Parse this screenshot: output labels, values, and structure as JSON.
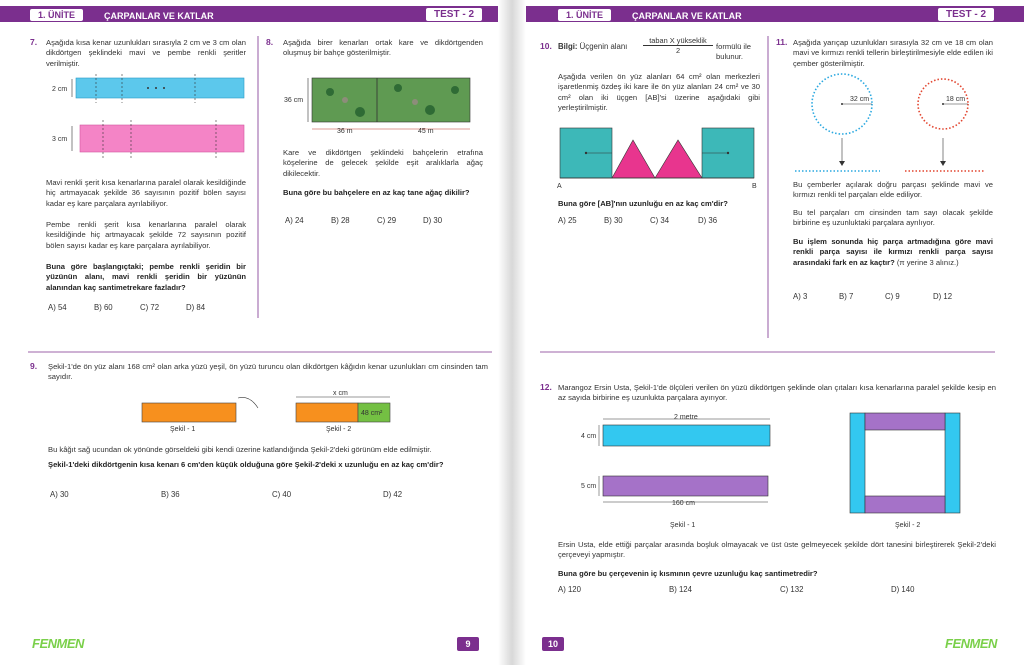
{
  "pages": [
    {
      "header": {
        "unit": "1. ÜNİTE",
        "title": "ÇARPANLAR VE KATLAR",
        "test": "TEST - 2"
      },
      "logo": "FENMEN",
      "page_number": "9",
      "questions": [
        {
          "number": "7.",
          "paragraphs": [
            "Aşağıda kısa kenar uzunlukları sırasıyla 2 cm ve 3 cm olan dikdörtgen şeklindeki mavi ve pembe renkli şeritler verilmiştir.",
            "Mavi renkli şerit kısa kenarlarına paralel olarak kesildiğinde hiç artmayacak şekilde 36 sayısının pozitif bölen sayısı kadar eş kare parçalara ayrılabiliyor.",
            "Pembe renkli şerit kısa kenarlarına paralel olarak kesildiğinde hiç artmayacak şekilde 72 sayısının pozitif bölen sayısı kadar eş kare parçalara ayrılabiliyor."
          ],
          "figure_labels": [
            "2 cm",
            "3 cm"
          ],
          "question": "Buna göre başlangıçtaki; pembe renkli şeridin bir yüzünün alanı, mavi renkli şeridin bir yüzünün alanından kaç santimetrekare fazladır?",
          "options": [
            "A) 54",
            "B) 60",
            "C) 72",
            "D) 84"
          ]
        },
        {
          "number": "8.",
          "paragraphs": [
            "Aşağıda birer kenarları ortak kare ve dikdörtgenden oluşmuş bir bahçe gösterilmiştir.",
            "Kare ve dikdörtgen şeklindeki bahçelerin etrafına köşelerine de gelecek şekilde eşit aralıklarla ağaç dikilecektir."
          ],
          "figure_labels": [
            "36 cm",
            "36 m",
            "45 m"
          ],
          "question": "Buna göre bu bahçelere en az kaç tane ağaç dikilir?",
          "options": [
            "A) 24",
            "B) 28",
            "C) 29",
            "D) 30"
          ]
        },
        {
          "number": "9.",
          "paragraphs": [
            "Şekil-1'de ön yüz alanı 168 cm² olan arka yüzü yeşil, ön yüzü turuncu olan dikdörtgen kâğıdın kenar uzunlukları cm cinsinden tam sayıdır.",
            "Bu kâğıt sağ ucundan ok yönünde görseldeki gibi kendi üzerine katlandığında Şekil-2'deki görünüm elde edilmiştir."
          ],
          "figure_labels": [
            "Şekil - 1",
            "x cm",
            "48 cm²",
            "Şekil - 2"
          ],
          "question": "Şekil-1'deki dikdörtgenin kısa kenarı 6 cm'den küçük olduğuna göre Şekil-2'deki x uzunluğu en az kaç cm'dir?",
          "options": [
            "A) 30",
            "B) 36",
            "C) 40",
            "D) 42"
          ]
        }
      ]
    },
    {
      "header": {
        "unit": "1. ÜNİTE",
        "title": "ÇARPANLAR VE KATLAR",
        "test": "TEST - 2"
      },
      "logo": "FENMEN",
      "page_number": "10",
      "questions": [
        {
          "number": "10.",
          "info": {
            "lead": "Bilgi:",
            "text": "Üçgenin alanı",
            "numerator": "taban X yükseklik",
            "denominator": "2",
            "tail": "formülü ile bulunur."
          },
          "paragraphs": [
            "Aşağıda verilen ön yüz alanları 64 cm² olan merkezleri işaretlenmiş özdeş iki kare ile ön yüz alanları 24 cm² ve 30 cm² olan iki üçgen [AB]'si üzerine aşağıdaki gibi yerleştirilmiştir."
          ],
          "figure_labels": [
            "A",
            "B"
          ],
          "question": "Buna göre [AB]'nın uzunluğu en az kaç cm'dir?",
          "options": [
            "A) 25",
            "B) 30",
            "C) 34",
            "D) 36"
          ]
        },
        {
          "number": "11.",
          "paragraphs": [
            "Aşağıda yarıçap uzunlukları sırasıyla 32 cm ve 18 cm olan mavi ve kırmızı renkli tellerin birleştirilmesiyle elde edilen iki çember gösterilmiştir.",
            "Bu çemberler açılarak doğru parçası şeklinde mavi ve kırmızı renkli tel parçaları elde ediliyor.",
            "Bu tel parçaları cm cinsinden tam sayı olacak şekilde birbirine eş uzunluktaki parçalara ayrılıyor."
          ],
          "figure_labels": [
            "32 cm",
            "18 cm"
          ],
          "question": "Bu işlem sonunda hiç parça artmadığına göre mavi renkli parça sayısı ile kırmızı renkli parça sayısı arasındaki fark en az kaçtır?",
          "note": "(π yerine 3 alınız.)",
          "options": [
            "A) 3",
            "B) 7",
            "C) 9",
            "D) 12"
          ]
        },
        {
          "number": "12.",
          "paragraphs": [
            "Marangoz Ersin Usta, Şekil-1'de ölçüleri verilen ön yüzü dikdörtgen şeklinde olan çıtaları kısa kenarlarına paralel şekilde kesip en az sayıda birbirine eş uzunlukta parçalara ayırıyor.",
            "Ersin Usta, elde ettiği parçalar arasında boşluk olmayacak ve üst üste gelmeyecek şekilde dört tanesini birleştirerek Şekil-2'deki çerçeveyi yapmıştır."
          ],
          "figure_labels": [
            "2 metre",
            "4 cm",
            "5 cm",
            "160 cm",
            "Şekil - 1",
            "Şekil - 2"
          ],
          "question": "Buna göre bu çerçevenin iç kısmının çevre uzunluğu kaç santimetredir?",
          "options": [
            "A) 120",
            "B) 124",
            "C) 132",
            "D) 140"
          ]
        }
      ]
    }
  ]
}
